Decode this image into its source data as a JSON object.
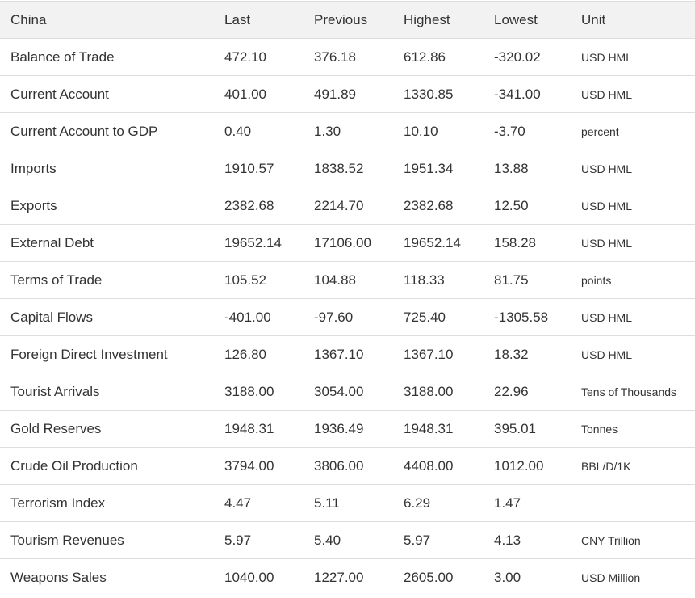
{
  "table": {
    "headers": [
      "China",
      "Last",
      "Previous",
      "Highest",
      "Lowest",
      "Unit"
    ],
    "rows": [
      {
        "name": "Balance of Trade",
        "last": "472.10",
        "previous": "376.18",
        "highest": "612.86",
        "lowest": "-320.02",
        "unit": "USD HML"
      },
      {
        "name": "Current Account",
        "last": "401.00",
        "previous": "491.89",
        "highest": "1330.85",
        "lowest": "-341.00",
        "unit": "USD HML"
      },
      {
        "name": "Current Account to GDP",
        "last": "0.40",
        "previous": "1.30",
        "highest": "10.10",
        "lowest": "-3.70",
        "unit": "percent"
      },
      {
        "name": "Imports",
        "last": "1910.57",
        "previous": "1838.52",
        "highest": "1951.34",
        "lowest": "13.88",
        "unit": "USD HML"
      },
      {
        "name": "Exports",
        "last": "2382.68",
        "previous": "2214.70",
        "highest": "2382.68",
        "lowest": "12.50",
        "unit": "USD HML"
      },
      {
        "name": "External Debt",
        "last": "19652.14",
        "previous": "17106.00",
        "highest": "19652.14",
        "lowest": "158.28",
        "unit": "USD HML"
      },
      {
        "name": "Terms of Trade",
        "last": "105.52",
        "previous": "104.88",
        "highest": "118.33",
        "lowest": "81.75",
        "unit": "points"
      },
      {
        "name": "Capital Flows",
        "last": "-401.00",
        "previous": "-97.60",
        "highest": "725.40",
        "lowest": "-1305.58",
        "unit": "USD HML"
      },
      {
        "name": "Foreign Direct Investment",
        "last": "126.80",
        "previous": "1367.10",
        "highest": "1367.10",
        "lowest": "18.32",
        "unit": "USD HML"
      },
      {
        "name": "Tourist Arrivals",
        "last": "3188.00",
        "previous": "3054.00",
        "highest": "3188.00",
        "lowest": "22.96",
        "unit": "Tens of Thousands"
      },
      {
        "name": "Gold Reserves",
        "last": "1948.31",
        "previous": "1936.49",
        "highest": "1948.31",
        "lowest": "395.01",
        "unit": "Tonnes"
      },
      {
        "name": "Crude Oil Production",
        "last": "3794.00",
        "previous": "3806.00",
        "highest": "4408.00",
        "lowest": "1012.00",
        "unit": "BBL/D/1K"
      },
      {
        "name": "Terrorism Index",
        "last": "4.47",
        "previous": "5.11",
        "highest": "6.29",
        "lowest": "1.47",
        "unit": ""
      },
      {
        "name": "Tourism Revenues",
        "last": "5.97",
        "previous": "5.40",
        "highest": "5.97",
        "lowest": "4.13",
        "unit": "CNY Trillion"
      },
      {
        "name": "Weapons Sales",
        "last": "1040.00",
        "previous": "1227.00",
        "highest": "2605.00",
        "lowest": "3.00",
        "unit": "USD Million"
      }
    ]
  }
}
